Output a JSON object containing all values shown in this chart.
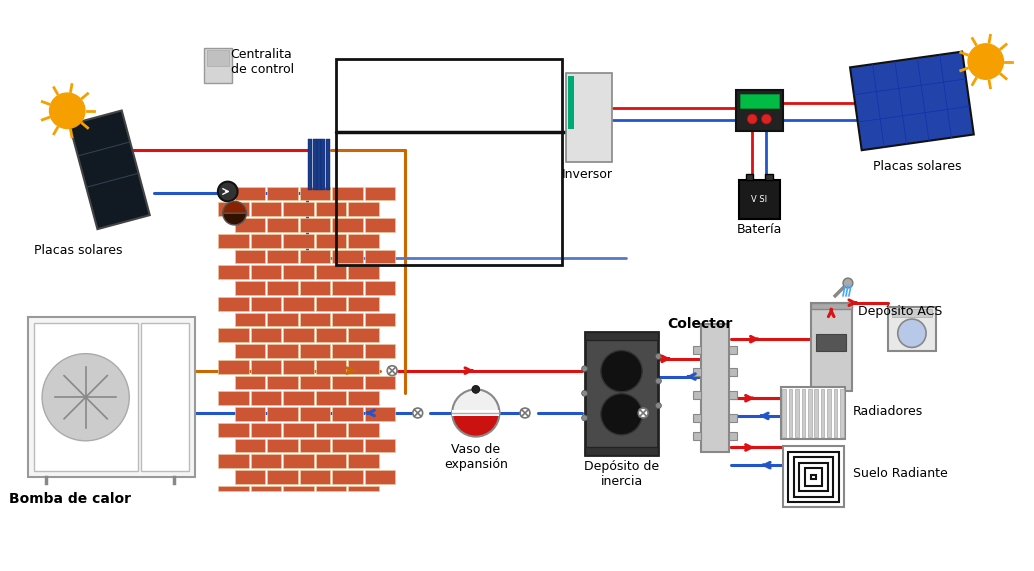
{
  "bg_color": "#ffffff",
  "pipe_red": "#dd1111",
  "pipe_blue": "#2255cc",
  "pipe_orange": "#cc6600",
  "pipe_black": "#111111",
  "pipe_lw": 2.2,
  "labels": {
    "centralita": "Centralita\nde control",
    "placas_left": "Placas solares",
    "placas_right": "Placas solares",
    "inversor": "Inversor",
    "bateria": "Batería",
    "bomba": "Bomba de calor",
    "vaso": "Vaso de\nexpansión",
    "deposito": "Depósito de\ninercia",
    "colector": "Colector",
    "acs": "Depósito ACS",
    "radiadores": "Radiadores",
    "suelo": "Suelo Radiante"
  },
  "sun_color": "#f5a000",
  "brick_color": "#cc5533",
  "brick_mortar": "#e8c8a0"
}
